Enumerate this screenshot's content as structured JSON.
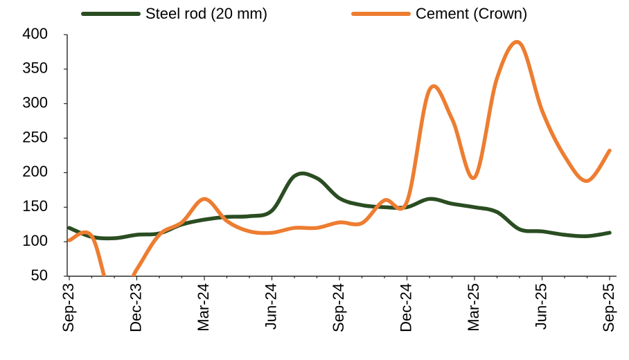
{
  "chart_data": {
    "type": "line",
    "categories": [
      "Sep-23",
      null,
      null,
      "Dec-23",
      null,
      null,
      "Mar-24",
      null,
      null,
      "Jun-24",
      null,
      null,
      "Sep-24",
      null,
      null,
      "Dec-24",
      null,
      null,
      "Mar-25",
      null,
      null,
      "Jun-25",
      null,
      null,
      "Sep-25"
    ],
    "series": [
      {
        "name": "Steel rod (20 mm)",
        "color": "#2a4d22",
        "values": [
          120,
          107,
          105,
          110,
          112,
          125,
          132,
          136,
          137,
          145,
          195,
          192,
          163,
          153,
          150,
          150,
          162,
          155,
          150,
          143,
          118,
          115,
          110,
          108,
          113
        ]
      },
      {
        "name": "Cement (Crown)",
        "color": "#ed7d31",
        "values": [
          102,
          108,
          10,
          60,
          110,
          128,
          162,
          130,
          115,
          113,
          120,
          120,
          128,
          127,
          160,
          158,
          320,
          278,
          193,
          337,
          388,
          290,
          224,
          188,
          232
        ]
      }
    ],
    "ylim": [
      50,
      400
    ],
    "yticks": [
      50,
      100,
      150,
      200,
      250,
      300,
      350,
      400
    ],
    "grid": false,
    "legend": "top"
  }
}
